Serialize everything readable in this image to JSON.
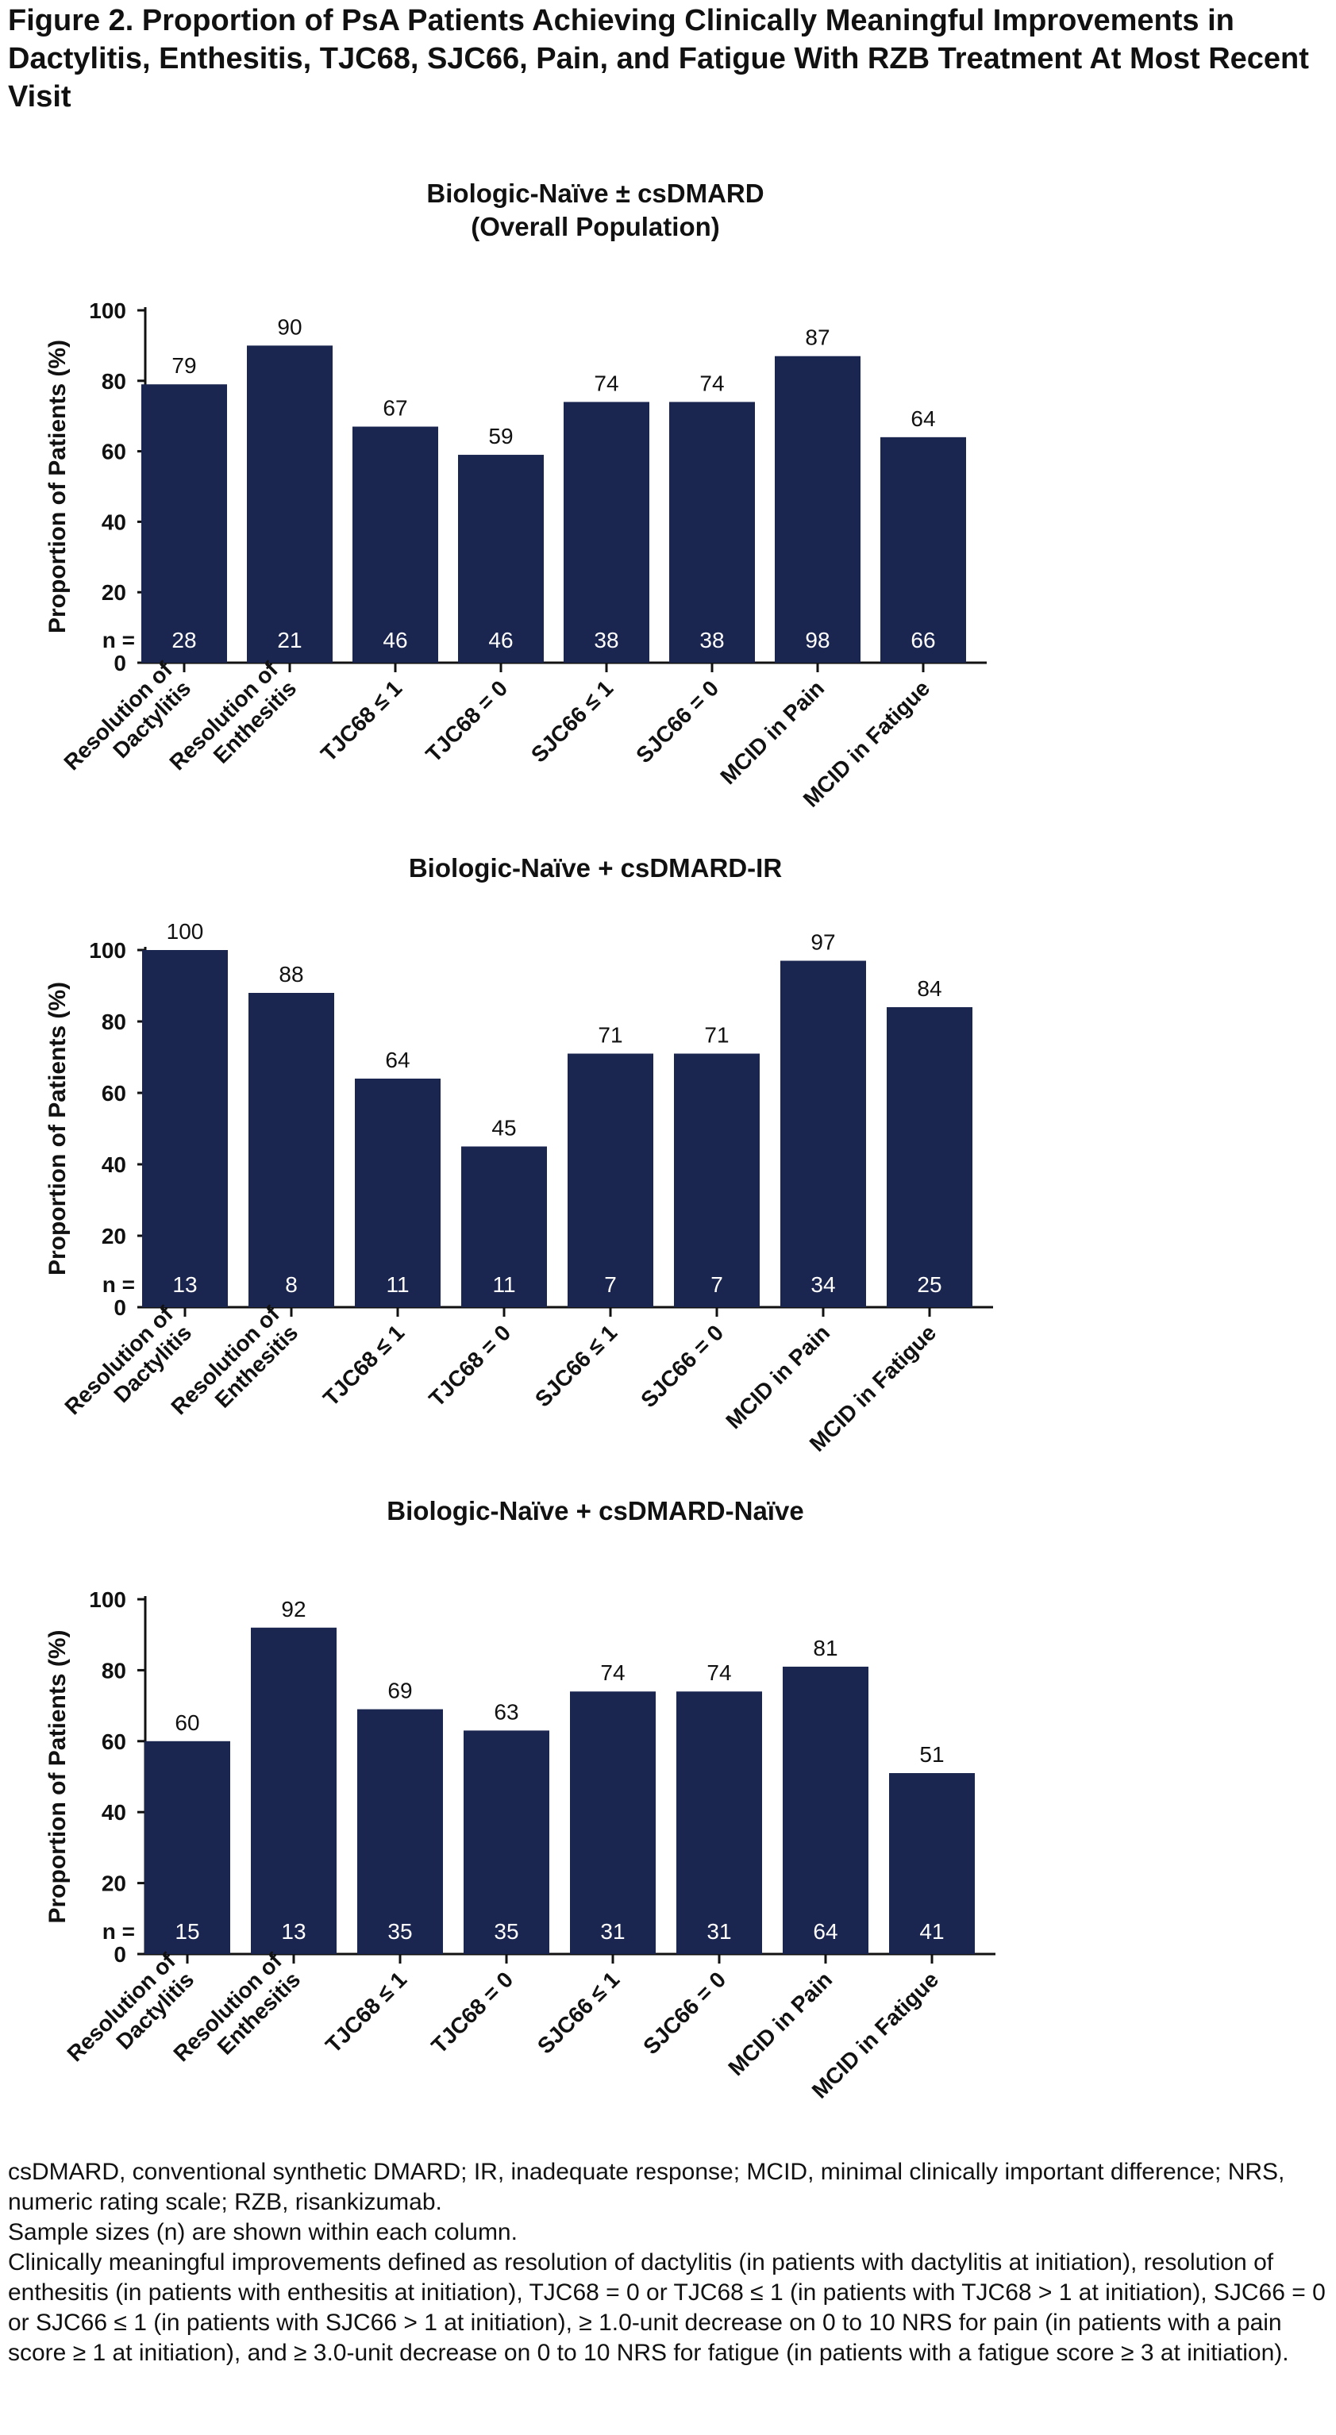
{
  "figure_title": "Figure 2. Proportion of PsA Patients Achieving Clinically Meaningful Improvements in Dactylitis, Enthesitis, TJC68, SJC66, Pain, and Fatigue With RZB Treatment At Most Recent Visit",
  "colors": {
    "bar": "#1b2650",
    "n_label": "#ffffff",
    "text": "#111111"
  },
  "chart_data": [
    {
      "type": "bar",
      "title": "Biologic-Naïve ± csDMARD",
      "subtitle": "(Overall Population)",
      "ylabel": "Proportion of Patients (%)",
      "ylim": [
        0,
        100
      ],
      "yticks": [
        "0",
        "20",
        "40",
        "60",
        "80",
        "100"
      ],
      "n_prefix": "n =",
      "categories": [
        [
          "Resolution of",
          "Dactylitis"
        ],
        [
          "Resolution of",
          "Enthesitis"
        ],
        [
          "TJC68 ≤ 1"
        ],
        [
          "TJC68 = 0"
        ],
        [
          "SJC66 ≤ 1"
        ],
        [
          "SJC66 = 0"
        ],
        [
          "MCID in Pain"
        ],
        [
          "MCID in Fatigue"
        ]
      ],
      "values": [
        79,
        90,
        67,
        59,
        74,
        74,
        87,
        64
      ],
      "n": [
        28,
        21,
        46,
        46,
        38,
        38,
        98,
        66
      ]
    },
    {
      "type": "bar",
      "title": "Biologic-Naïve + csDMARD-IR",
      "ylabel": "Proportion of Patients (%)",
      "ylim": [
        0,
        100
      ],
      "yticks": [
        "0",
        "20",
        "40",
        "60",
        "80",
        "100"
      ],
      "n_prefix": "n =",
      "categories": [
        [
          "Resolution of",
          "Dactylitis"
        ],
        [
          "Resolution of",
          "Enthesitis"
        ],
        [
          "TJC68 ≤ 1"
        ],
        [
          "TJC68 = 0"
        ],
        [
          "SJC66 ≤ 1"
        ],
        [
          "SJC66 = 0"
        ],
        [
          "MCID in Pain"
        ],
        [
          "MCID in Fatigue"
        ]
      ],
      "values": [
        100,
        88,
        64,
        45,
        71,
        71,
        97,
        84
      ],
      "n": [
        13,
        8,
        11,
        11,
        7,
        7,
        34,
        25
      ]
    },
    {
      "type": "bar",
      "title": "Biologic-Naïve + csDMARD-Naïve",
      "ylabel": "Proportion of Patients (%)",
      "ylim": [
        0,
        100
      ],
      "yticks": [
        "0",
        "20",
        "40",
        "60",
        "80",
        "100"
      ],
      "n_prefix": "n =",
      "categories": [
        [
          "Resolution of",
          "Dactylitis"
        ],
        [
          "Resolution of",
          "Enthesitis"
        ],
        [
          "TJC68 ≤ 1"
        ],
        [
          "TJC68 = 0"
        ],
        [
          "SJC66 ≤ 1"
        ],
        [
          "SJC66 = 0"
        ],
        [
          "MCID in Pain"
        ],
        [
          "MCID in Fatigue"
        ]
      ],
      "values": [
        60,
        92,
        69,
        63,
        74,
        74,
        81,
        51
      ],
      "n": [
        15,
        13,
        35,
        35,
        31,
        31,
        64,
        41
      ]
    }
  ],
  "footnotes": {
    "abbreviations": "csDMARD, conventional synthetic DMARD; IR, inadequate response; MCID, minimal clinically important difference; NRS, numeric rating scale; RZB, risankizumab.",
    "sample_sizes": "Sample sizes (n) are shown within each column.",
    "definitions": "Clinically meaningful improvements defined as resolution of dactylitis (in patients with dactylitis at initiation), resolution of enthesitis (in patients with enthesitis at initiation), TJC68 = 0 or TJC68 ≤ 1 (in patients with TJC68 > 1 at initiation), SJC66 = 0 or SJC66 ≤ 1 (in patients with SJC66 > 1 at initiation), ≥ 1.0-unit decrease on 0 to 10 NRS for pain (in patients with a pain score ≥ 1 at initiation), and ≥ 3.0-unit decrease on 0 to 10 NRS for fatigue (in patients with a fatigue score ≥ 3 at initiation)."
  }
}
